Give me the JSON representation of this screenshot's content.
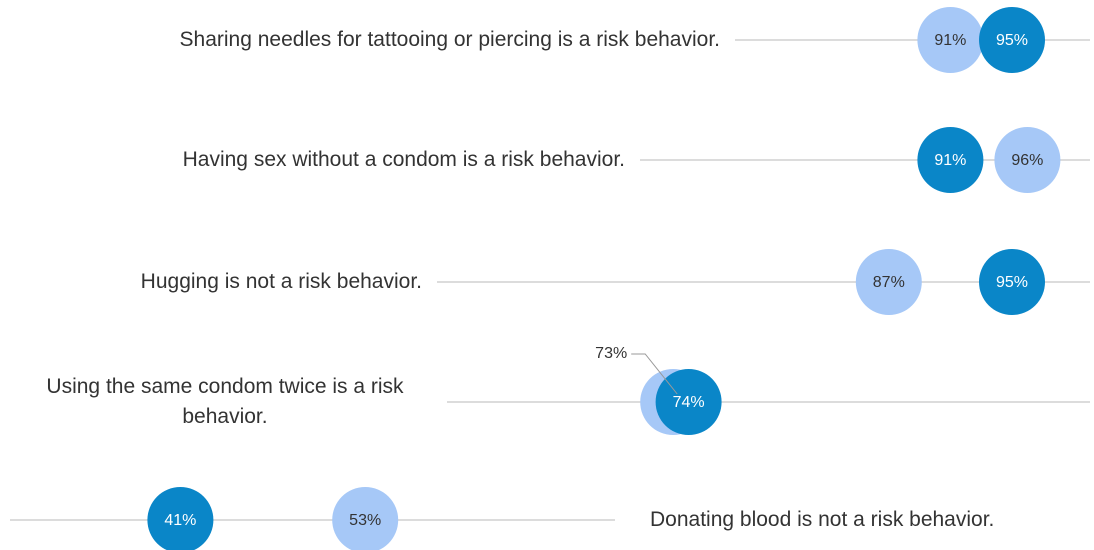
{
  "chart_data": {
    "type": "dot",
    "categories": [
      "Sharing needles for tattooing or piercing is a risk behavior.",
      "Having sex without a condom is a risk behavior.",
      "Hugging is not a risk behavior.",
      "Using the same condom twice is a risk behavior.",
      "Donating blood is not a risk behavior."
    ],
    "series": [
      {
        "color": "#a6c8f7",
        "values": [
          91,
          96,
          87,
          73,
          53
        ],
        "value_labels": [
          "91%",
          "96%",
          "87%",
          "73%",
          "53%"
        ]
      },
      {
        "color": "#0a86c8",
        "values": [
          95,
          91,
          95,
          74,
          41
        ],
        "value_labels": [
          "95%",
          "91%",
          "95%",
          "74%",
          "41%"
        ]
      }
    ],
    "xlim": [
      0,
      100
    ]
  }
}
